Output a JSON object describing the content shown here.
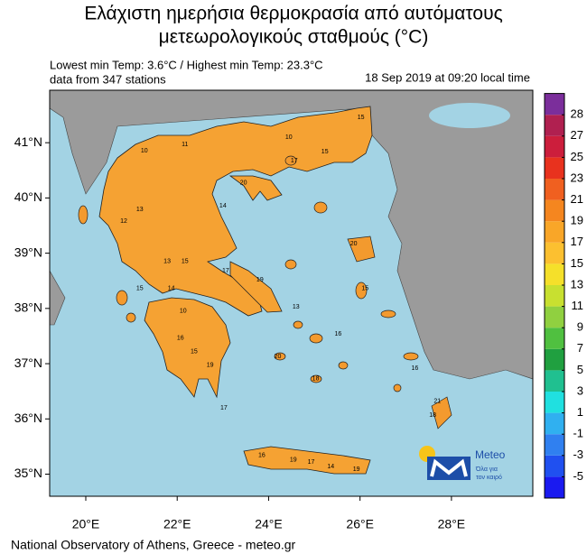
{
  "map": {
    "title": [
      "Ελάχιστη ημερήσια θερμοκρασία από αυτόματους",
      "μετεωρολογικούς σταθμούς (°C)"
    ],
    "stats": "Lowest min Temp: 3.6°C / Highest min Temp: 23.3°C",
    "stations_note": "data from 347 stations",
    "timestamp": "18 Sep 2019 at 09:20 local time",
    "footer": "National Observatory of Athens, Greece - meteo.gr",
    "logo": {
      "name": "Meteo",
      "slogan": [
        "Όλα για",
        "τον καιρό"
      ]
    },
    "xlim": [
      19.21,
      29.78
    ],
    "ylim": [
      34.6,
      41.95
    ],
    "xticks": [
      {
        "value": 20,
        "label": "20°E"
      },
      {
        "value": 22,
        "label": "22°E"
      },
      {
        "value": 24,
        "label": "24°E"
      },
      {
        "value": 26,
        "label": "26°E"
      },
      {
        "value": 28,
        "label": "28°E"
      }
    ],
    "yticks": [
      {
        "value": 35,
        "label": "35°N"
      },
      {
        "value": 36,
        "label": "36°N"
      },
      {
        "value": 37,
        "label": "37°N"
      },
      {
        "value": 38,
        "label": "38°N"
      },
      {
        "value": 39,
        "label": "39°N"
      },
      {
        "value": 40,
        "label": "40°N"
      },
      {
        "value": 41,
        "label": "41°N"
      }
    ],
    "colorbar": {
      "ticks": [
        -5,
        -3,
        -1,
        1,
        3,
        5,
        7,
        9,
        11,
        13,
        15,
        17,
        19,
        21,
        23,
        25,
        27,
        28
      ],
      "colors": [
        "#1a1af0",
        "#2050f0",
        "#3080f0",
        "#30b0f0",
        "#20e0e0",
        "#20c090",
        "#20a040",
        "#50c040",
        "#90d040",
        "#c8e030",
        "#f5e02a",
        "#fcc030",
        "#f9a628",
        "#f5861f",
        "#f06020",
        "#e8321e",
        "#cc1e3c",
        "#b02050",
        "#7b2e9b"
      ]
    },
    "stations": {
      "lon": [
        22.17,
        21.28,
        26.02,
        24.44,
        25.23,
        24.56,
        23.45,
        23.0,
        21.18,
        20.83,
        25.86,
        21.78,
        22.17,
        23.06,
        23.81,
        21.18,
        21.87,
        24.6,
        22.13,
        22.07,
        22.37,
        22.72,
        23.02,
        24.2,
        25.03,
        23.85,
        24.54,
        24.93,
        25.36,
        25.92,
        27.69,
        27.59,
        27.2,
        26.11,
        25.52
      ],
      "lat": [
        40.97,
        40.85,
        41.46,
        41.1,
        40.84,
        40.67,
        40.27,
        39.86,
        39.79,
        39.58,
        39.17,
        38.85,
        38.85,
        38.68,
        38.52,
        38.36,
        38.36,
        38.03,
        37.95,
        37.46,
        37.22,
        36.97,
        36.2,
        37.13,
        36.73,
        35.34,
        35.26,
        35.22,
        35.14,
        35.09,
        36.32,
        36.07,
        36.92,
        38.36,
        37.54
      ],
      "values": [
        11,
        10,
        15,
        10,
        15,
        17,
        20,
        14,
        13,
        12,
        20,
        13,
        15,
        17,
        19,
        15,
        14,
        13,
        10,
        16,
        15,
        19,
        17,
        20,
        18,
        16,
        19,
        17,
        14,
        19,
        21,
        18,
        16,
        15,
        16
      ]
    }
  }
}
